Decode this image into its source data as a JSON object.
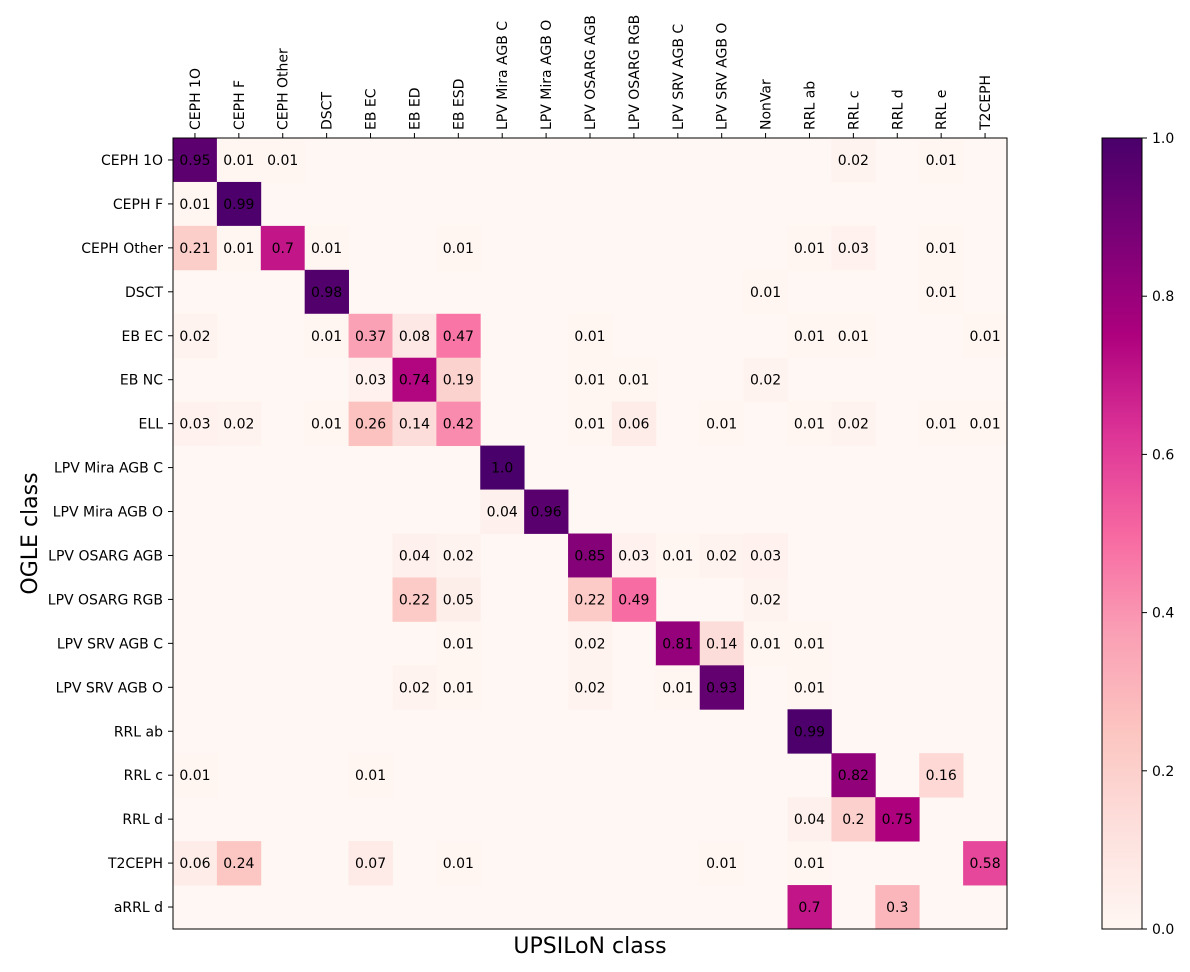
{
  "chart_data": {
    "type": "heatmap",
    "xlabel": "UPSILoN class",
    "ylabel": "OGLE class",
    "x_categories": [
      "CEPH 1O",
      "CEPH F",
      "CEPH Other",
      "DSCT",
      "EB EC",
      "EB ED",
      "EB ESD",
      "LPV Mira AGB C",
      "LPV Mira AGB O",
      "LPV OSARG AGB",
      "LPV OSARG RGB",
      "LPV SRV AGB C",
      "LPV SRV AGB O",
      "NonVar",
      "RRL ab",
      "RRL c",
      "RRL d",
      "RRL e",
      "T2CEPH"
    ],
    "y_categories": [
      "CEPH 1O",
      "CEPH F",
      "CEPH Other",
      "DSCT",
      "EB EC",
      "EB NC",
      "ELL",
      "LPV Mira AGB C",
      "LPV Mira AGB O",
      "LPV OSARG AGB",
      "LPV OSARG RGB",
      "LPV SRV AGB C",
      "LPV SRV AGB O",
      "RRL ab",
      "RRL c",
      "RRL d",
      "T2CEPH",
      "aRRL d"
    ],
    "cells": [
      [
        0,
        0,
        "0.95"
      ],
      [
        0,
        1,
        "0.01"
      ],
      [
        0,
        2,
        "0.01"
      ],
      [
        0,
        15,
        "0.02"
      ],
      [
        0,
        17,
        "0.01"
      ],
      [
        1,
        0,
        "0.01"
      ],
      [
        1,
        1,
        "0.99"
      ],
      [
        2,
        0,
        "0.21"
      ],
      [
        2,
        1,
        "0.01"
      ],
      [
        2,
        2,
        "0.7"
      ],
      [
        2,
        3,
        "0.01"
      ],
      [
        2,
        6,
        "0.01"
      ],
      [
        2,
        14,
        "0.01"
      ],
      [
        2,
        15,
        "0.03"
      ],
      [
        2,
        17,
        "0.01"
      ],
      [
        3,
        3,
        "0.98"
      ],
      [
        3,
        13,
        "0.01"
      ],
      [
        3,
        17,
        "0.01"
      ],
      [
        4,
        0,
        "0.02"
      ],
      [
        4,
        3,
        "0.01"
      ],
      [
        4,
        4,
        "0.37"
      ],
      [
        4,
        5,
        "0.08"
      ],
      [
        4,
        6,
        "0.47"
      ],
      [
        4,
        9,
        "0.01"
      ],
      [
        4,
        14,
        "0.01"
      ],
      [
        4,
        15,
        "0.01"
      ],
      [
        4,
        18,
        "0.01"
      ],
      [
        5,
        4,
        "0.03"
      ],
      [
        5,
        5,
        "0.74"
      ],
      [
        5,
        6,
        "0.19"
      ],
      [
        5,
        9,
        "0.01"
      ],
      [
        5,
        10,
        "0.01"
      ],
      [
        5,
        13,
        "0.02"
      ],
      [
        6,
        0,
        "0.03"
      ],
      [
        6,
        1,
        "0.02"
      ],
      [
        6,
        3,
        "0.01"
      ],
      [
        6,
        4,
        "0.26"
      ],
      [
        6,
        5,
        "0.14"
      ],
      [
        6,
        6,
        "0.42"
      ],
      [
        6,
        9,
        "0.01"
      ],
      [
        6,
        10,
        "0.06"
      ],
      [
        6,
        12,
        "0.01"
      ],
      [
        6,
        14,
        "0.01"
      ],
      [
        6,
        15,
        "0.02"
      ],
      [
        6,
        17,
        "0.01"
      ],
      [
        6,
        18,
        "0.01"
      ],
      [
        7,
        7,
        "1.0"
      ],
      [
        8,
        7,
        "0.04"
      ],
      [
        8,
        8,
        "0.96"
      ],
      [
        9,
        5,
        "0.04"
      ],
      [
        9,
        6,
        "0.02"
      ],
      [
        9,
        9,
        "0.85"
      ],
      [
        9,
        10,
        "0.03"
      ],
      [
        9,
        11,
        "0.01"
      ],
      [
        9,
        12,
        "0.02"
      ],
      [
        9,
        13,
        "0.03"
      ],
      [
        10,
        5,
        "0.22"
      ],
      [
        10,
        6,
        "0.05"
      ],
      [
        10,
        9,
        "0.22"
      ],
      [
        10,
        10,
        "0.49"
      ],
      [
        10,
        13,
        "0.02"
      ],
      [
        11,
        6,
        "0.01"
      ],
      [
        11,
        9,
        "0.02"
      ],
      [
        11,
        11,
        "0.81"
      ],
      [
        11,
        12,
        "0.14"
      ],
      [
        11,
        13,
        "0.01"
      ],
      [
        11,
        14,
        "0.01"
      ],
      [
        12,
        5,
        "0.02"
      ],
      [
        12,
        6,
        "0.01"
      ],
      [
        12,
        9,
        "0.02"
      ],
      [
        12,
        11,
        "0.01"
      ],
      [
        12,
        12,
        "0.93"
      ],
      [
        12,
        14,
        "0.01"
      ],
      [
        13,
        14,
        "0.99"
      ],
      [
        14,
        0,
        "0.01"
      ],
      [
        14,
        4,
        "0.01"
      ],
      [
        14,
        15,
        "0.82"
      ],
      [
        14,
        17,
        "0.16"
      ],
      [
        15,
        14,
        "0.04"
      ],
      [
        15,
        15,
        "0.2"
      ],
      [
        15,
        16,
        "0.75"
      ],
      [
        16,
        0,
        "0.06"
      ],
      [
        16,
        1,
        "0.24"
      ],
      [
        16,
        4,
        "0.07"
      ],
      [
        16,
        6,
        "0.01"
      ],
      [
        16,
        12,
        "0.01"
      ],
      [
        16,
        14,
        "0.01"
      ],
      [
        16,
        18,
        "0.58"
      ],
      [
        17,
        14,
        "0.7"
      ],
      [
        17,
        16,
        "0.3"
      ]
    ],
    "value_range": [
      0,
      1
    ],
    "colorbar": {
      "ticks": [
        "0.0",
        "0.2",
        "0.4",
        "0.6",
        "0.8",
        "1.0"
      ],
      "colormap": "RdPu",
      "stops": [
        "#fff7f3",
        "#fde0dd",
        "#fcc5c0",
        "#fa9fb5",
        "#f768a1",
        "#dd3497",
        "#ae017e",
        "#7a0177",
        "#49006a"
      ]
    }
  }
}
